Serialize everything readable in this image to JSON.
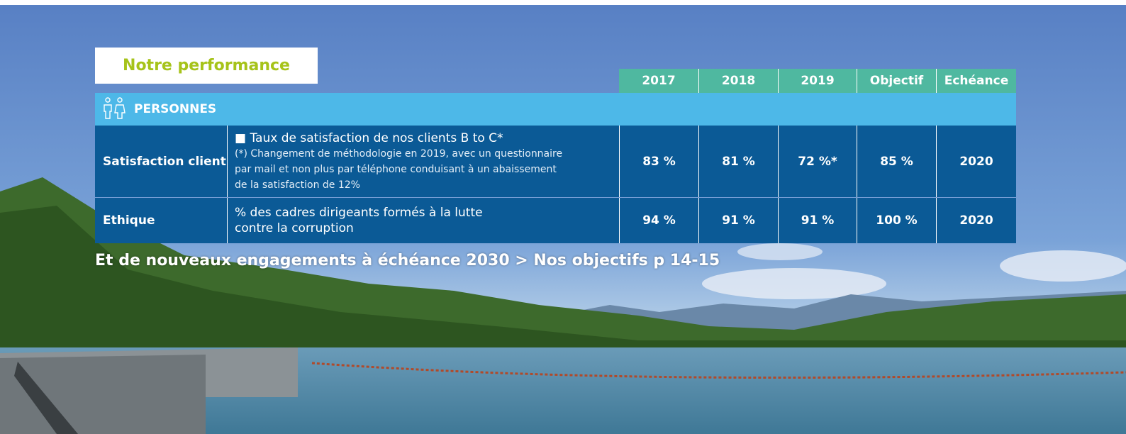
{
  "header": {
    "title": "Notre performance"
  },
  "table": {
    "columns": [
      "2017",
      "2018",
      "2019",
      "Objectif",
      "Echéance"
    ],
    "section": "PERSONNES",
    "rows": [
      {
        "label": "Satisfaction client",
        "indicator": "■ Taux de satisfaction de nos clients B to C*",
        "note": "(*) Changement de méthodologie en 2019, avec un questionnaire\npar mail et non plus par téléphone conduisant à un abaissement\nde la satisfaction de 12%",
        "values": [
          "83 %",
          "81 %",
          "72 %*",
          "85 %",
          "2020"
        ]
      },
      {
        "label": "Ethique",
        "indicator": "% des cadres dirigeants formés à la lutte\ncontre la corruption",
        "values": [
          "94 %",
          "91 %",
          "91 %",
          "100 %",
          "2020"
        ]
      }
    ]
  },
  "footer": {
    "text": "Et de nouveaux engagements à échéance 2030 > Nos objectifs p 14-15"
  }
}
